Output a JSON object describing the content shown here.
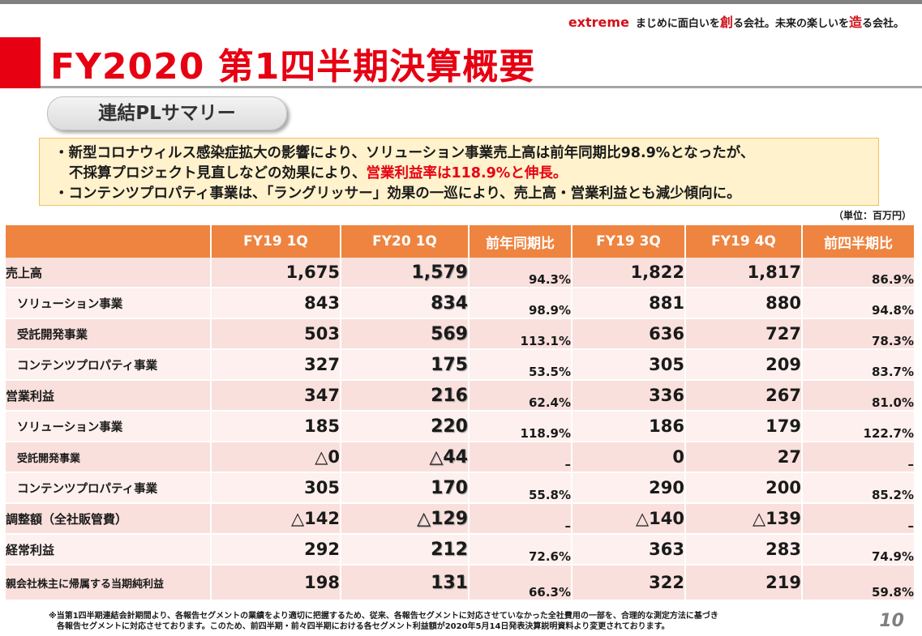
{
  "brand": {
    "word": "extreme",
    "tagline_a": "まじめに面白いを",
    "tagline_b": "創",
    "tagline_c": "る会社。未来の楽しいを",
    "tagline_d": "造",
    "tagline_e": "る会社。"
  },
  "title": "FY2020 第1四半期決算概要",
  "section": "連結PLサマリー",
  "callout": {
    "l1": "・新型コロナウィルス感染症拡大の影響により、ソリューション事業売上高は前年同期比98.9%となったが、",
    "l2a": "不採算プロジェクト見直しなどの効果により、",
    "l2b": "営業利益率は118.9%と伸長。",
    "l3": "・コンテンツプロパティ事業は、「ラングリッサー」効果の一巡により、売上高・営業利益とも減少傾向に。"
  },
  "unit": "（単位：百万円）",
  "headers": [
    "",
    "FY19 1Q",
    "FY20 1Q",
    "前年同期比",
    "FY19 3Q",
    "FY19 4Q",
    "前四半期比"
  ],
  "rows": [
    {
      "label": "売上高",
      "values": [
        "1,675",
        "1,579",
        "94.3%",
        "1,822",
        "1,817",
        "86.9%"
      ]
    },
    {
      "label": "ソリューション事業",
      "values": [
        "843",
        "834",
        "98.9%",
        "881",
        "880",
        "94.8%"
      ]
    },
    {
      "label": "受託開発事業",
      "values": [
        "503",
        "569",
        "113.1%",
        "636",
        "727",
        "78.3%"
      ]
    },
    {
      "label": "コンテンツプロパティ事業",
      "values": [
        "327",
        "175",
        "53.5%",
        "305",
        "209",
        "83.7%"
      ]
    },
    {
      "label": "営業利益",
      "values": [
        "347",
        "216",
        "62.4%",
        "336",
        "267",
        "81.0%"
      ]
    },
    {
      "label": "ソリューション事業",
      "values": [
        "185",
        "220",
        "118.9%",
        "186",
        "179",
        "122.7%"
      ]
    },
    {
      "label": "受託開発事業",
      "values": [
        "△0",
        "△44",
        "–",
        "0",
        "27",
        "–"
      ]
    },
    {
      "label": "コンテンツプロパティ事業",
      "values": [
        "305",
        "170",
        "55.8%",
        "290",
        "200",
        "85.2%"
      ]
    },
    {
      "label": "調整額（全社販管費）",
      "values": [
        "△142",
        "△129",
        "–",
        "△140",
        "△139",
        "–"
      ]
    },
    {
      "label": "経常利益",
      "values": [
        "292",
        "212",
        "72.6%",
        "363",
        "283",
        "74.9%"
      ]
    },
    {
      "label": "親会社株主に帰属する当期純利益",
      "values": [
        "198",
        "131",
        "66.3%",
        "322",
        "219",
        "59.8%"
      ]
    }
  ],
  "note": {
    "l1": "※当第1四半期連結会計期間より、各報告セグメントの業績をより適切に把握するため、従来、各報告セグメントに対応させていなかった全社費用の一部を、合理的な測定方法に基づき",
    "l2": "各報告セグメントに対応させております。このため、前四半期・前々四半期における各セグメント利益額が2020年5月14日発表決算説明資料より変更されております。"
  },
  "page_number": "10"
}
